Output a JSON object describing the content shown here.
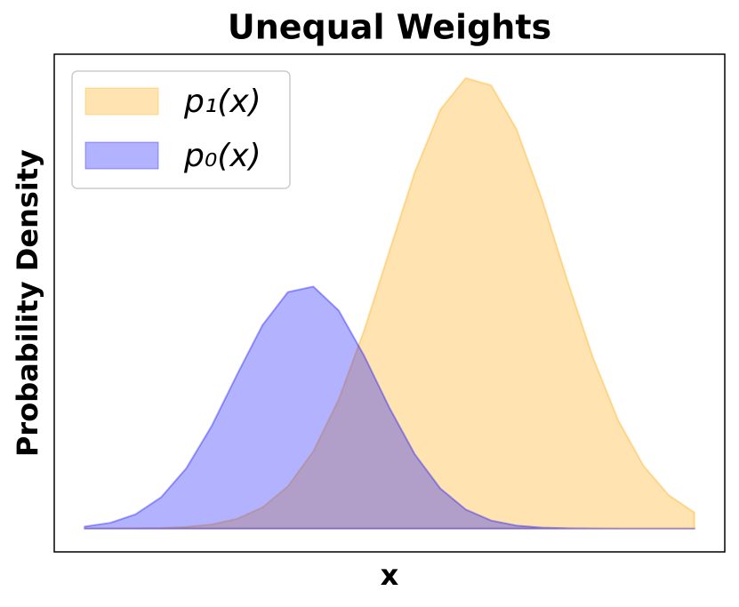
{
  "chart_data": {
    "type": "area",
    "title": "Unequal Weights",
    "xlabel": "x",
    "ylabel": "Probability Density",
    "x": [
      -3,
      -2.75,
      -2.5,
      -2.25,
      -2,
      -1.75,
      -1.5,
      -1.25,
      -1,
      -0.75,
      -0.5,
      -0.25,
      0,
      0.25,
      0.5,
      0.75,
      1,
      1.25,
      1.5,
      1.75,
      2,
      2.25,
      2.5,
      2.75,
      3
    ],
    "series": [
      {
        "name": "p₁(x)",
        "color": "#ffa500",
        "values": [
          0,
          0.0001,
          0.0002,
          0.0007,
          0.0021,
          0.0054,
          0.0128,
          0.028,
          0.0559,
          0.1023,
          0.1712,
          0.2625,
          0.3683,
          0.4729,
          0.5554,
          0.5973,
          0.5878,
          0.5295,
          0.4366,
          0.3293,
          0.2274,
          0.1438,
          0.0831,
          0.044,
          0.0213
        ]
      },
      {
        "name": "p₀(x)",
        "color": "#0000ff",
        "values": [
          0.0026,
          0.0075,
          0.0188,
          0.0412,
          0.0799,
          0.1361,
          0.2043,
          0.2698,
          0.3136,
          0.3209,
          0.2891,
          0.2292,
          0.1599,
          0.0982,
          0.0531,
          0.0253,
          0.0106,
          0.0039,
          0.0013,
          0.0004,
          0.0001,
          0,
          0,
          0,
          0
        ]
      }
    ],
    "xlim": [
      -3.3,
      3.3
    ],
    "ylim": [
      -0.031,
      0.629
    ],
    "legend": "upper left",
    "grid": false
  }
}
